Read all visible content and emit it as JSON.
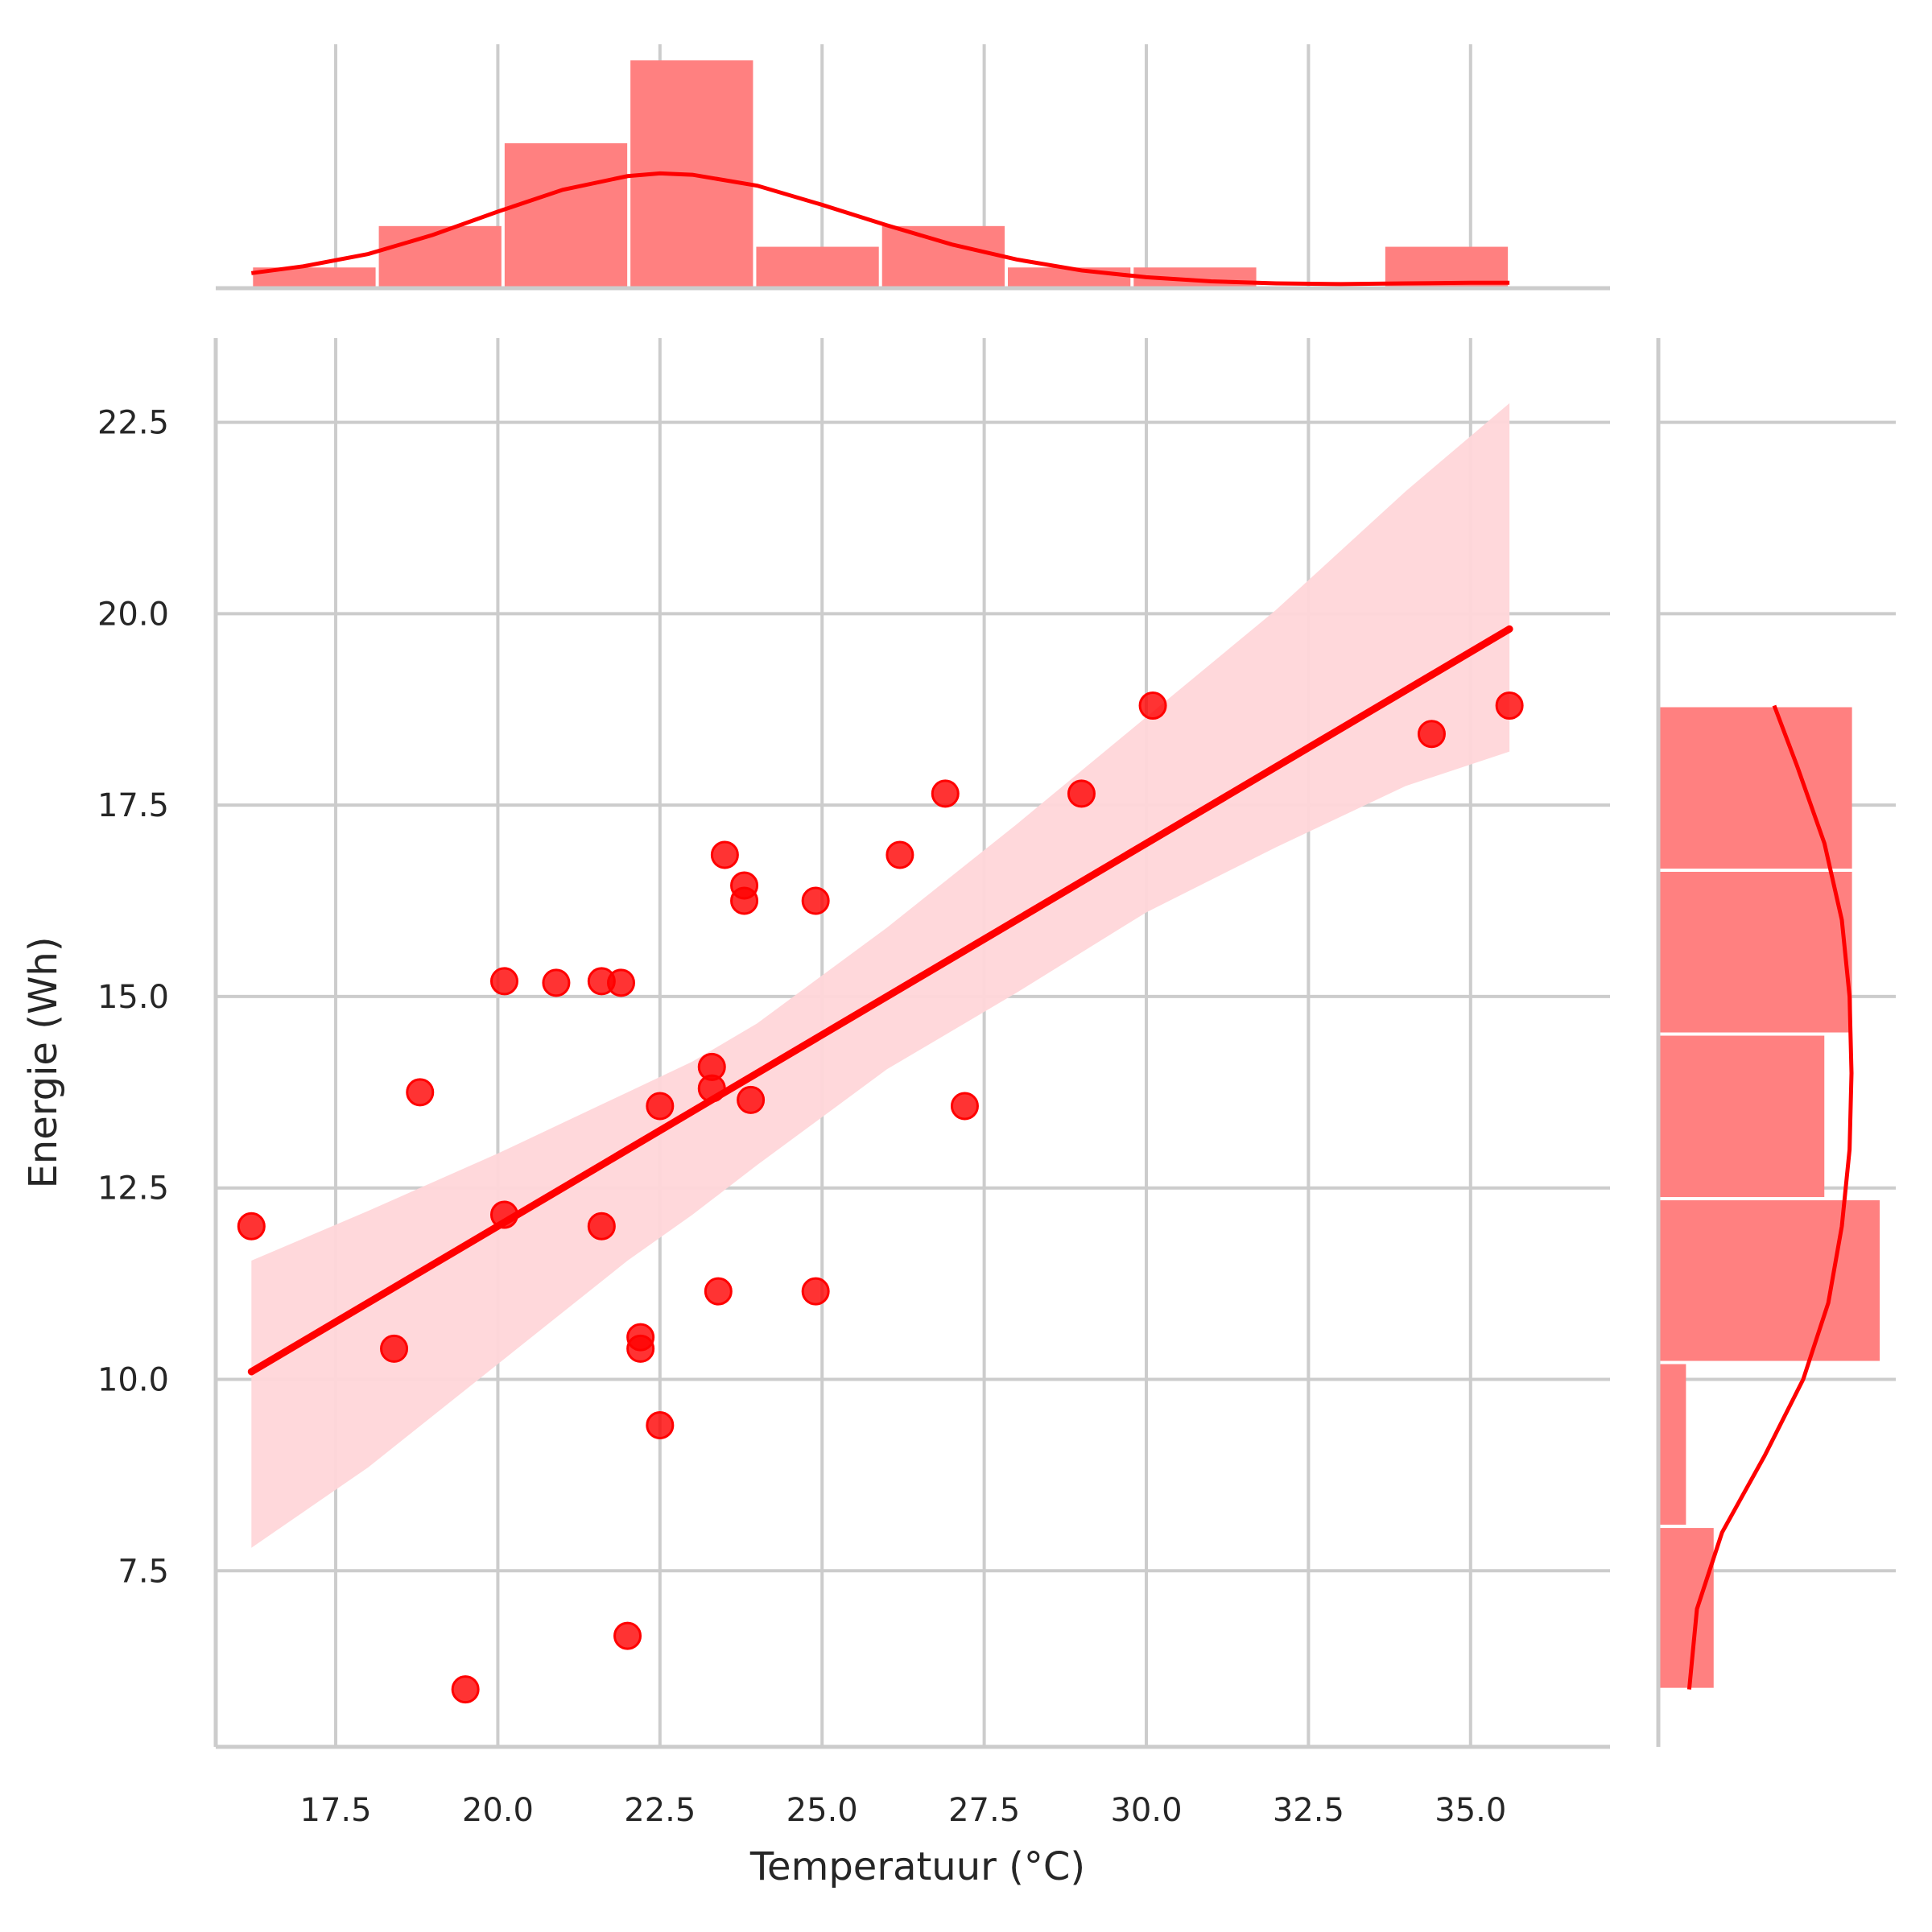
{
  "chart_data": {
    "type": "scatter",
    "xlabel": "Temperatuur (°C)",
    "ylabel": "Energie (Wh)",
    "xlim": [
      15.65,
      37.15
    ],
    "ylim": [
      5.2,
      23.6
    ],
    "xticks": [
      17.5,
      20.0,
      22.5,
      25.0,
      27.5,
      30.0,
      32.5,
      35.0
    ],
    "yticks": [
      7.5,
      10.0,
      12.5,
      15.0,
      17.5,
      20.0,
      22.5
    ],
    "grid": true,
    "colors": {
      "points": "#ff0000",
      "line": "#ff0000",
      "band": "#ffd6d9",
      "hist": "#ff8080",
      "grid": "#cccccc",
      "text": "#262626"
    },
    "points": [
      {
        "x": 16.2,
        "y": 12.0
      },
      {
        "x": 18.4,
        "y": 10.4
      },
      {
        "x": 18.8,
        "y": 13.75
      },
      {
        "x": 19.5,
        "y": 5.95
      },
      {
        "x": 20.1,
        "y": 15.2
      },
      {
        "x": 20.1,
        "y": 12.15
      },
      {
        "x": 20.9,
        "y": 15.18
      },
      {
        "x": 21.6,
        "y": 15.2
      },
      {
        "x": 21.9,
        "y": 15.18
      },
      {
        "x": 21.6,
        "y": 12.0
      },
      {
        "x": 22.0,
        "y": 6.65
      },
      {
        "x": 22.2,
        "y": 10.55
      },
      {
        "x": 22.2,
        "y": 10.4
      },
      {
        "x": 22.5,
        "y": 13.57
      },
      {
        "x": 22.5,
        "y": 9.4
      },
      {
        "x": 23.3,
        "y": 14.08
      },
      {
        "x": 23.3,
        "y": 13.8
      },
      {
        "x": 23.4,
        "y": 11.15
      },
      {
        "x": 23.5,
        "y": 16.85
      },
      {
        "x": 23.8,
        "y": 16.45
      },
      {
        "x": 23.8,
        "y": 16.25
      },
      {
        "x": 23.9,
        "y": 13.65
      },
      {
        "x": 24.9,
        "y": 16.25
      },
      {
        "x": 24.9,
        "y": 11.15
      },
      {
        "x": 26.2,
        "y": 16.85
      },
      {
        "x": 26.9,
        "y": 17.65
      },
      {
        "x": 27.2,
        "y": 13.57
      },
      {
        "x": 29.0,
        "y": 17.65
      },
      {
        "x": 30.1,
        "y": 18.8
      },
      {
        "x": 34.4,
        "y": 18.43
      },
      {
        "x": 35.6,
        "y": 18.8
      }
    ],
    "regression": {
      "x": [
        16.2,
        35.6
      ],
      "y": [
        10.1,
        19.8
      ],
      "band_x": [
        16.2,
        18.0,
        20.0,
        22.0,
        23.0,
        24.0,
        26.0,
        28.0,
        30.0,
        32.0,
        34.0,
        35.6
      ],
      "band_upper": [
        11.55,
        12.2,
        12.95,
        13.75,
        14.15,
        14.65,
        15.9,
        17.25,
        18.65,
        20.05,
        21.6,
        22.75
      ],
      "band_lower": [
        7.8,
        8.85,
        10.2,
        11.55,
        12.15,
        12.8,
        14.05,
        15.05,
        16.1,
        16.95,
        17.75,
        18.2
      ]
    },
    "x_histogram": {
      "bins": [
        [
          16.2,
          18.14
        ],
        [
          18.14,
          20.08
        ],
        [
          20.08,
          22.02
        ],
        [
          22.02,
          23.96
        ],
        [
          23.96,
          25.9
        ],
        [
          25.9,
          27.84
        ],
        [
          27.84,
          29.78
        ],
        [
          29.78,
          31.72
        ],
        [
          31.72,
          33.66
        ],
        [
          33.66,
          35.6
        ]
      ],
      "counts": [
        1,
        3,
        7,
        11,
        2,
        3,
        1,
        1,
        0,
        2
      ]
    },
    "y_histogram": {
      "bins": [
        [
          5.95,
          8.08
        ],
        [
          8.08,
          10.22
        ],
        [
          10.22,
          12.36
        ],
        [
          12.36,
          14.51
        ],
        [
          14.51,
          16.65
        ],
        [
          16.65,
          18.8
        ]
      ],
      "counts": [
        2,
        1,
        8,
        6,
        7,
        7
      ]
    },
    "kde_x": {
      "x": [
        16.2,
        17.0,
        18.0,
        19.0,
        20.0,
        21.0,
        22.0,
        22.5,
        23.0,
        24.0,
        25.0,
        26.0,
        27.0,
        28.0,
        29.0,
        30.0,
        31.0,
        32.0,
        33.0,
        34.0,
        35.0,
        35.6
      ],
      "density": [
        0.11,
        0.16,
        0.25,
        0.39,
        0.56,
        0.72,
        0.82,
        0.84,
        0.83,
        0.75,
        0.61,
        0.46,
        0.32,
        0.21,
        0.13,
        0.08,
        0.05,
        0.035,
        0.03,
        0.035,
        0.04,
        0.04
      ]
    },
    "kde_y": {
      "y": [
        5.95,
        7.0,
        8.0,
        9.0,
        10.0,
        11.0,
        12.0,
        13.0,
        14.0,
        15.0,
        16.0,
        17.0,
        18.0,
        18.8
      ],
      "density": [
        0.16,
        0.2,
        0.33,
        0.55,
        0.75,
        0.88,
        0.95,
        0.99,
        1.0,
        0.99,
        0.95,
        0.86,
        0.72,
        0.6
      ]
    }
  }
}
